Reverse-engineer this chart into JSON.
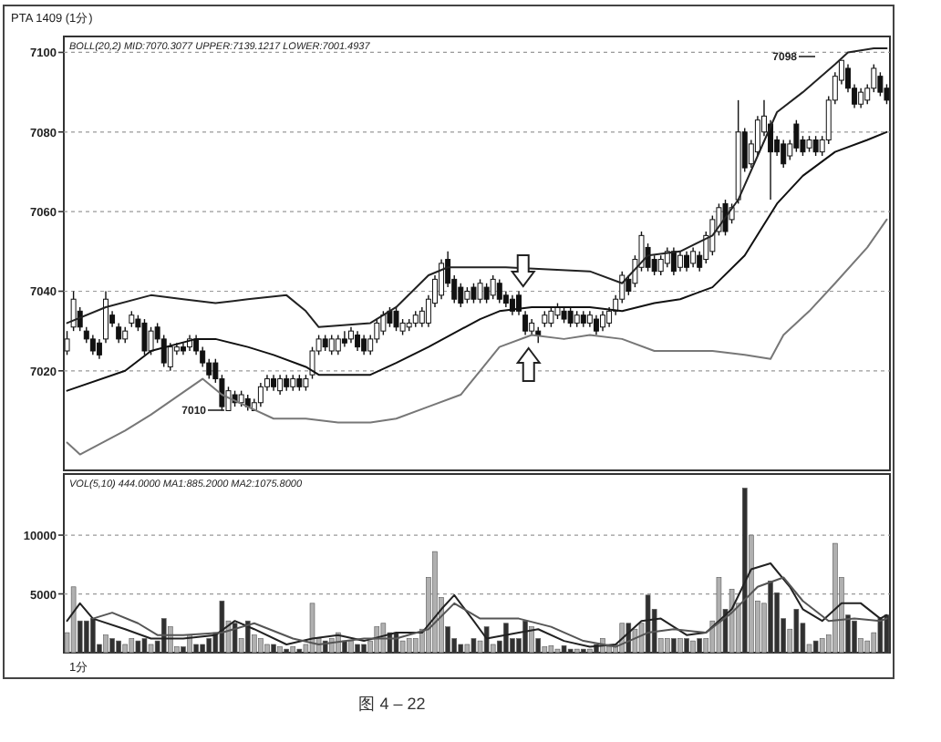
{
  "chart_data": [
    {
      "type": "candlestick",
      "title": "PTA 1409 (1分)",
      "subtitle": "BOLL(20,2) MID:7070.3077 UPPER:7139.1217 LOWER:7001.4937",
      "categories": [
        null,
        null,
        null,
        null,
        null,
        null,
        null,
        null,
        null,
        null,
        null,
        null,
        null,
        null,
        null,
        null,
        null,
        null,
        null,
        null,
        null,
        null,
        null,
        null,
        null,
        null,
        null,
        null,
        null,
        null,
        null,
        null,
        null,
        null,
        null,
        null,
        null,
        null,
        null,
        null,
        null,
        null,
        null,
        null,
        null,
        null,
        null,
        null,
        null,
        null,
        null,
        null,
        null,
        null,
        null,
        null,
        null,
        null,
        null,
        null,
        null,
        null,
        null,
        null,
        null,
        null,
        null,
        null,
        null,
        null,
        null,
        null,
        null,
        null,
        null,
        null,
        null,
        null,
        null,
        null,
        null,
        null,
        null,
        null,
        null,
        null,
        null,
        null,
        null,
        null,
        null,
        null,
        null,
        null,
        null,
        null,
        null,
        null,
        null,
        null,
        null,
        null,
        null,
        null,
        null,
        null,
        null,
        null,
        null,
        null,
        null,
        null,
        null,
        null,
        null,
        null,
        null,
        null,
        null,
        null,
        null,
        null,
        null,
        null,
        null,
        null,
        null,
        null
      ],
      "ohlc": [
        [
          7025,
          7030,
          7024,
          7028
        ],
        [
          7031,
          7040,
          7030,
          7038
        ],
        [
          7035,
          7036,
          7030,
          7031
        ],
        [
          7030,
          7031,
          7027,
          7028
        ],
        [
          7028,
          7029,
          7024,
          7025
        ],
        [
          7027,
          7028,
          7023,
          7024
        ],
        [
          7028,
          7040,
          7027,
          7038
        ],
        [
          7034,
          7035,
          7031,
          7032
        ],
        [
          7031,
          7032,
          7027,
          7028
        ],
        [
          7028,
          7031,
          7027,
          7030
        ],
        [
          7032,
          7035,
          7031,
          7034
        ],
        [
          7033,
          7034,
          7030,
          7031
        ],
        [
          7032,
          7033,
          7024,
          7025
        ],
        [
          7025,
          7031,
          7024,
          7030
        ],
        [
          7031,
          7032,
          7027,
          7028
        ],
        [
          7028,
          7029,
          7021,
          7022
        ],
        [
          7021,
          7027,
          7020,
          7026
        ],
        [
          7025,
          7027,
          7024,
          7026
        ],
        [
          7026,
          7027,
          7024,
          7025
        ],
        [
          7026,
          7029,
          7025,
          7028
        ],
        [
          7028,
          7029,
          7024,
          7025
        ],
        [
          7025,
          7026,
          7021,
          7022
        ],
        [
          7022,
          7023,
          7018,
          7019
        ],
        [
          7022,
          7023,
          7017,
          7018
        ],
        [
          7018,
          7019,
          7010,
          7011
        ],
        [
          7010,
          7016,
          7010,
          7015
        ],
        [
          7014,
          7015,
          7011,
          7012
        ],
        [
          7012,
          7015,
          7011,
          7014
        ],
        [
          7013,
          7014,
          7010,
          7011
        ],
        [
          7010,
          7013,
          7010,
          7012
        ],
        [
          7012,
          7017,
          7011,
          7016
        ],
        [
          7016,
          7019,
          7015,
          7018
        ],
        [
          7018,
          7019,
          7015,
          7016
        ],
        [
          7015,
          7019,
          7014,
          7018
        ],
        [
          7018,
          7019,
          7015,
          7016
        ],
        [
          7016,
          7019,
          7015,
          7018
        ],
        [
          7018,
          7019,
          7015,
          7016
        ],
        [
          7016,
          7019,
          7015,
          7018
        ],
        [
          7019,
          7026,
          7018,
          7025
        ],
        [
          7025,
          7029,
          7024,
          7028
        ],
        [
          7028,
          7029,
          7025,
          7026
        ],
        [
          7025,
          7029,
          7024,
          7028
        ],
        [
          7025,
          7029,
          7024,
          7028
        ],
        [
          7028,
          7030,
          7026,
          7027
        ],
        [
          7028,
          7031,
          7027,
          7030
        ],
        [
          7029,
          7030,
          7025,
          7026
        ],
        [
          7028,
          7029,
          7024,
          7025
        ],
        [
          7025,
          7029,
          7024,
          7028
        ],
        [
          7028,
          7033,
          7027,
          7032
        ],
        [
          7030,
          7035,
          7029,
          7034
        ],
        [
          7035,
          7036,
          7031,
          7032
        ],
        [
          7035,
          7036,
          7030,
          7031
        ],
        [
          7030,
          7033,
          7029,
          7032
        ],
        [
          7031,
          7033,
          7030,
          7032
        ],
        [
          7032,
          7035,
          7031,
          7034
        ],
        [
          7032,
          7036,
          7031,
          7035
        ],
        [
          7032,
          7039,
          7031,
          7038
        ],
        [
          7037,
          7044,
          7036,
          7043
        ],
        [
          7039,
          7048,
          7038,
          7047
        ],
        [
          7048,
          7050,
          7041,
          7042
        ],
        [
          7043,
          7044,
          7037,
          7038
        ],
        [
          7041,
          7042,
          7036,
          7037
        ],
        [
          7038,
          7041,
          7037,
          7040
        ],
        [
          7041,
          7042,
          7037,
          7038
        ],
        [
          7038,
          7043,
          7037,
          7042
        ],
        [
          7041,
          7042,
          7037,
          7038
        ],
        [
          7039,
          7044,
          7038,
          7043
        ],
        [
          7042,
          7043,
          7037,
          7038
        ],
        [
          7039,
          7040,
          7036,
          7037
        ],
        [
          7038,
          7039,
          7034,
          7035
        ],
        [
          7039,
          7040,
          7034,
          7035
        ],
        [
          7034,
          7035,
          7029,
          7030
        ],
        [
          7030,
          7033,
          7029,
          7032
        ],
        [
          7030,
          7031,
          7027,
          7029
        ],
        [
          7032,
          7035,
          7031,
          7034
        ],
        [
          7032,
          7036,
          7031,
          7035
        ],
        [
          7034,
          7037,
          7033,
          7036
        ],
        [
          7035,
          7036,
          7032,
          7033
        ],
        [
          7035,
          7036,
          7031,
          7032
        ],
        [
          7032,
          7035,
          7031,
          7034
        ],
        [
          7034,
          7035,
          7031,
          7032
        ],
        [
          7032,
          7035,
          7031,
          7034
        ],
        [
          7033,
          7034,
          7029,
          7030
        ],
        [
          7031,
          7035,
          7030,
          7034
        ],
        [
          7032,
          7036,
          7031,
          7035
        ],
        [
          7035,
          7039,
          7034,
          7038
        ],
        [
          7038,
          7045,
          7037,
          7044
        ],
        [
          7043,
          7044,
          7039,
          7040
        ],
        [
          7042,
          7049,
          7041,
          7048
        ],
        [
          7046,
          7055,
          7045,
          7054
        ],
        [
          7051,
          7052,
          7045,
          7046
        ],
        [
          7048,
          7049,
          7044,
          7045
        ],
        [
          7045,
          7049,
          7044,
          7048
        ],
        [
          7047,
          7051,
          7046,
          7050
        ],
        [
          7050,
          7051,
          7044,
          7045
        ],
        [
          7046,
          7050,
          7045,
          7049
        ],
        [
          7049,
          7050,
          7045,
          7046
        ],
        [
          7047,
          7051,
          7046,
          7050
        ],
        [
          7049,
          7050,
          7045,
          7046
        ],
        [
          7048,
          7055,
          7047,
          7054
        ],
        [
          7050,
          7059,
          7049,
          7058
        ],
        [
          7055,
          7062,
          7054,
          7061
        ],
        [
          7062,
          7063,
          7054,
          7055
        ],
        [
          7058,
          7062,
          7057,
          7061
        ],
        [
          7063,
          7088,
          7062,
          7080
        ],
        [
          7080,
          7081,
          7070,
          7071
        ],
        [
          7072,
          7078,
          7071,
          7077
        ],
        [
          7075,
          7084,
          7074,
          7083
        ],
        [
          7080,
          7088,
          7079,
          7084
        ],
        [
          7082,
          7083,
          7063,
          7075
        ],
        [
          7078,
          7079,
          7074,
          7075
        ],
        [
          7077,
          7078,
          7071,
          7072
        ],
        [
          7074,
          7078,
          7073,
          7077
        ],
        [
          7082,
          7083,
          7075,
          7076
        ],
        [
          7078,
          7079,
          7074,
          7075
        ],
        [
          7076,
          7079,
          7075,
          7078
        ],
        [
          7078,
          7079,
          7074,
          7075
        ],
        [
          7075,
          7079,
          7074,
          7078
        ],
        [
          7078,
          7089,
          7077,
          7088
        ],
        [
          7088,
          7095,
          7087,
          7094
        ],
        [
          7093,
          7098,
          7092,
          7098
        ],
        [
          7096,
          7097,
          7090,
          7091
        ],
        [
          7091,
          7092,
          7086,
          7087
        ],
        [
          7087,
          7091,
          7086,
          7090
        ],
        [
          7088,
          7092,
          7087,
          7091
        ],
        [
          7091,
          7097,
          7090,
          7096
        ],
        [
          7094,
          7095,
          7089,
          7090
        ],
        [
          7091,
          7092,
          7087,
          7088
        ]
      ],
      "series": [
        {
          "type": "line",
          "color": "#222222",
          "values": [
            7032,
            null,
            null,
            null,
            null,
            null,
            7036,
            null,
            null,
            null,
            null,
            null,
            null,
            7039,
            null,
            null,
            null,
            null,
            7038,
            null,
            null,
            null,
            null,
            7037,
            null,
            null,
            null,
            null,
            7038,
            null,
            null,
            null,
            null,
            null,
            7039,
            null,
            null,
            7035,
            null,
            7031,
            null,
            null,
            null,
            null,
            null,
            null,
            null,
            7032,
            null,
            null,
            null,
            7036,
            null,
            null,
            null,
            null,
            7044,
            null,
            null,
            7046,
            null,
            null,
            null,
            null,
            7046,
            null,
            null,
            null,
            7046,
            null,
            null,
            null,
            null,
            null,
            null,
            null,
            null,
            null,
            null,
            null,
            null,
            7045,
            null,
            null,
            null,
            null,
            7042,
            null,
            null,
            null,
            7049,
            null,
            null,
            null,
            null,
            7050,
            null,
            null,
            null,
            null,
            7054,
            null,
            null,
            null,
            7063,
            null,
            null,
            7074,
            null,
            null,
            7085,
            null,
            null,
            null,
            7090,
            null,
            null,
            null,
            null,
            7097,
            null,
            7100,
            null,
            null,
            null,
            7101,
            null,
            7101
          ]
        },
        {
          "type": "line",
          "color": "#111111",
          "values": [
            7015,
            null,
            null,
            null,
            null,
            null,
            null,
            null,
            null,
            7020,
            null,
            null,
            null,
            7025,
            null,
            null,
            null,
            null,
            null,
            null,
            7028,
            null,
            null,
            7028,
            null,
            null,
            null,
            null,
            7026,
            null,
            null,
            null,
            7024,
            null,
            null,
            null,
            null,
            7021,
            null,
            7019,
            null,
            null,
            null,
            null,
            null,
            null,
            null,
            7019,
            null,
            null,
            null,
            7022,
            null,
            null,
            null,
            null,
            7026,
            null,
            null,
            null,
            null,
            null,
            null,
            null,
            7033,
            null,
            null,
            7035,
            null,
            null,
            null,
            null,
            7036,
            null,
            null,
            null,
            null,
            7036,
            null,
            null,
            null,
            7036,
            null,
            null,
            null,
            null,
            7035,
            null,
            null,
            null,
            null,
            7037,
            null,
            null,
            null,
            7038,
            null,
            null,
            null,
            null,
            7041,
            null,
            null,
            null,
            null,
            7049,
            null,
            null,
            null,
            null,
            7062,
            null,
            null,
            null,
            7069,
            null,
            null,
            null,
            null,
            7075,
            null,
            null,
            null,
            null,
            7078,
            null,
            null,
            7080
          ]
        },
        {
          "type": "line",
          "color": "#777777",
          "values": [
            7002,
            null,
            6999,
            null,
            null,
            null,
            null,
            null,
            null,
            7005,
            null,
            null,
            null,
            7009,
            null,
            null,
            null,
            null,
            null,
            null,
            null,
            7018,
            null,
            null,
            7014,
            null,
            null,
            null,
            7011,
            null,
            null,
            null,
            7008,
            null,
            null,
            null,
            null,
            7008,
            null,
            null,
            null,
            null,
            7007,
            null,
            null,
            null,
            null,
            7007,
            null,
            null,
            null,
            7008,
            null,
            null,
            null,
            null,
            7011,
            null,
            null,
            null,
            null,
            7014,
            null,
            null,
            7020,
            null,
            null,
            7026,
            null,
            null,
            null,
            null,
            7029,
            null,
            null,
            null,
            null,
            7028,
            null,
            null,
            null,
            7029,
            null,
            null,
            null,
            null,
            7028,
            null,
            null,
            null,
            null,
            7025,
            null,
            null,
            null,
            7025,
            null,
            null,
            null,
            null,
            7025,
            null,
            null,
            null,
            null,
            7024,
            null,
            null,
            null,
            7023,
            null,
            7029,
            null,
            null,
            null,
            7035,
            null,
            null,
            null,
            7042,
            null,
            null,
            null,
            null,
            7051,
            null,
            null,
            7058
          ]
        }
      ],
      "ylim": [
        6995,
        7104
      ],
      "yticks": [
        7020,
        7040,
        7060,
        7080,
        7100
      ],
      "grid": "y",
      "annotations": [
        "7098",
        "7010"
      ]
    },
    {
      "type": "bar",
      "subtitle": "VOL(5,10) 444.0000 MA1:885.2000 MA2:1075.8000",
      "categories": [
        null,
        null,
        null,
        null,
        null,
        null,
        null,
        null,
        null,
        null,
        null,
        null,
        null,
        null,
        null,
        null,
        null,
        null,
        null,
        null,
        null,
        null,
        null,
        null,
        null,
        null,
        null,
        null,
        null,
        null,
        null,
        null,
        null,
        null,
        null,
        null,
        null,
        null,
        null,
        null,
        null,
        null,
        null,
        null,
        null,
        null,
        null,
        null,
        null,
        null,
        null,
        null,
        null,
        null,
        null,
        null,
        null,
        null,
        null,
        null,
        null,
        null,
        null,
        null,
        null,
        null,
        null,
        null,
        null,
        null,
        null,
        null,
        null,
        null,
        null,
        null,
        null,
        null,
        null,
        null,
        null,
        null,
        null,
        null,
        null,
        null,
        null,
        null,
        null,
        null,
        null,
        null,
        null,
        null,
        null,
        null,
        null,
        null,
        null,
        null,
        null,
        null,
        null,
        null,
        null,
        null,
        null,
        null,
        null,
        null,
        null,
        null,
        null,
        null,
        null,
        null,
        null,
        null,
        null,
        null,
        null,
        null,
        null,
        null,
        null,
        null,
        null,
        null
      ],
      "series": [
        {
          "type": "bar",
          "values": [
            1700,
            5600,
            2700,
            2700,
            2900,
            700,
            1500,
            1200,
            1000,
            700,
            1200,
            1000,
            1200,
            700,
            1000,
            2900,
            2200,
            500,
            500,
            1500,
            700,
            700,
            1200,
            1700,
            4400,
            2700,
            2500,
            1200,
            2700,
            1500,
            1200,
            700,
            700,
            500,
            300,
            500,
            300,
            700,
            4200,
            1200,
            1000,
            1200,
            1700,
            1000,
            1000,
            700,
            700,
            1000,
            2200,
            2500,
            1700,
            1700,
            1000,
            1200,
            1200,
            2000,
            6400,
            8600,
            4700,
            2200,
            1200,
            700,
            700,
            1200,
            1000,
            2200,
            700,
            1000,
            2500,
            1200,
            1200,
            2700,
            2200,
            1200,
            500,
            600,
            300,
            600,
            300,
            300,
            300,
            300,
            700,
            1200,
            500,
            700,
            2500,
            2500,
            2000,
            2500,
            4900,
            3700,
            1200,
            1200,
            1200,
            1200,
            1200,
            1000,
            1200,
            1200,
            2700,
            6400,
            3700,
            5400,
            4200,
            14000,
            10000,
            4400,
            4200,
            6100,
            5100,
            2900,
            2000,
            3700,
            2500,
            700,
            1000,
            1200,
            1500,
            9300,
            6400,
            3200,
            2700,
            1200,
            1000,
            1700,
            2900,
            3200
          ],
          "colors": [
            "#b0b0b0",
            "#b0b0b0",
            "#303030",
            "#303030",
            "#303030",
            "#303030",
            "#b0b0b0",
            "#303030",
            "#303030",
            "#b0b0b0",
            "#b0b0b0",
            "#303030",
            "#303030",
            "#b0b0b0",
            "#303030",
            "#303030",
            "#b0b0b0",
            "#b0b0b0",
            "#303030",
            "#b0b0b0",
            "#303030",
            "#303030",
            "#303030",
            "#303030",
            "#303030",
            "#b0b0b0",
            "#303030",
            "#b0b0b0",
            "#303030",
            "#b0b0b0",
            "#b0b0b0",
            "#b0b0b0",
            "#303030",
            "#b0b0b0",
            "#303030",
            "#b0b0b0",
            "#303030",
            "#b0b0b0",
            "#b0b0b0",
            "#b0b0b0",
            "#303030",
            "#b0b0b0",
            "#b0b0b0",
            "#303030",
            "#b0b0b0",
            "#303030",
            "#303030",
            "#b0b0b0",
            "#b0b0b0",
            "#b0b0b0",
            "#303030",
            "#303030",
            "#b0b0b0",
            "#b0b0b0",
            "#b0b0b0",
            "#b0b0b0",
            "#b0b0b0",
            "#b0b0b0",
            "#b0b0b0",
            "#303030",
            "#303030",
            "#303030",
            "#b0b0b0",
            "#303030",
            "#b0b0b0",
            "#303030",
            "#b0b0b0",
            "#303030",
            "#303030",
            "#303030",
            "#303030",
            "#303030",
            "#b0b0b0",
            "#303030",
            "#b0b0b0",
            "#b0b0b0",
            "#b0b0b0",
            "#303030",
            "#303030",
            "#b0b0b0",
            "#303030",
            "#b0b0b0",
            "#303030",
            "#b0b0b0",
            "#b0b0b0",
            "#b0b0b0",
            "#b0b0b0",
            "#303030",
            "#b0b0b0",
            "#b0b0b0",
            "#303030",
            "#303030",
            "#b0b0b0",
            "#b0b0b0",
            "#303030",
            "#b0b0b0",
            "#303030",
            "#b0b0b0",
            "#303030",
            "#b0b0b0",
            "#b0b0b0",
            "#b0b0b0",
            "#303030",
            "#b0b0b0",
            "#b0b0b0",
            "#303030",
            "#b0b0b0",
            "#b0b0b0",
            "#b0b0b0",
            "#303030",
            "#303030",
            "#303030",
            "#b0b0b0",
            "#303030",
            "#303030",
            "#b0b0b0",
            "#303030",
            "#b0b0b0",
            "#b0b0b0",
            "#b0b0b0",
            "#b0b0b0",
            "#303030",
            "#303030",
            "#b0b0b0",
            "#b0b0b0",
            "#b0b0b0",
            "#303030",
            "#303030"
          ]
        },
        {
          "type": "line",
          "color": "#222222",
          "values": [
            2700,
            null,
            4200,
            null,
            2900,
            null,
            null,
            null,
            null,
            2000,
            null,
            null,
            null,
            1200,
            null,
            null,
            null,
            null,
            1200,
            null,
            null,
            null,
            null,
            1500,
            null,
            null,
            2700,
            null,
            null,
            2000,
            null,
            null,
            null,
            null,
            700,
            null,
            null,
            null,
            1200,
            null,
            null,
            null,
            1500,
            null,
            null,
            null,
            1000,
            null,
            null,
            null,
            null,
            1700,
            null,
            null,
            null,
            1700,
            null,
            null,
            3700,
            null,
            4900,
            null,
            null,
            2700,
            null,
            1200,
            null,
            null,
            null,
            null,
            1700,
            null,
            null,
            2000,
            null,
            null,
            null,
            1000,
            null,
            null,
            null,
            500,
            null,
            null,
            null,
            700,
            null,
            null,
            null,
            2700,
            null,
            null,
            2900,
            null,
            null,
            null,
            1500,
            null,
            null,
            1700,
            null,
            null,
            null,
            3700,
            null,
            null,
            7100,
            null,
            null,
            7600,
            null,
            null,
            5600,
            null,
            3700,
            null,
            null,
            2700,
            null,
            null,
            4200,
            null,
            null,
            4200,
            null,
            null,
            2900,
            3200
          ]
        },
        {
          "type": "line",
          "color": "#555555",
          "values": [
            null,
            null,
            null,
            null,
            2900,
            null,
            null,
            3400,
            null,
            null,
            null,
            2500,
            null,
            null,
            1500,
            null,
            null,
            null,
            1500,
            null,
            null,
            null,
            null,
            null,
            1700,
            null,
            null,
            null,
            null,
            2500,
            null,
            null,
            null,
            null,
            null,
            1200,
            null,
            null,
            null,
            700,
            null,
            null,
            null,
            null,
            null,
            null,
            1200,
            null,
            null,
            null,
            null,
            1200,
            null,
            null,
            null,
            null,
            2000,
            null,
            null,
            null,
            4200,
            null,
            null,
            null,
            2900,
            null,
            null,
            null,
            null,
            null,
            2900,
            null,
            null,
            null,
            null,
            2200,
            null,
            null,
            null,
            null,
            1000,
            null,
            null,
            null,
            null,
            500,
            null,
            null,
            null,
            null,
            1700,
            null,
            null,
            null,
            2000,
            null,
            null,
            null,
            null,
            1700,
            null,
            null,
            null,
            3400,
            null,
            null,
            null,
            5600,
            null,
            null,
            null,
            6400,
            null,
            null,
            4400,
            null,
            null,
            null,
            2700,
            null,
            null,
            null,
            2900,
            null,
            null,
            null,
            2700,
            2900
          ]
        }
      ],
      "ylim": [
        0,
        15200
      ],
      "yticks": [
        5000,
        10000
      ],
      "grid": "y",
      "annotations": [
        "1分",
        "图 4 – 22"
      ]
    }
  ]
}
